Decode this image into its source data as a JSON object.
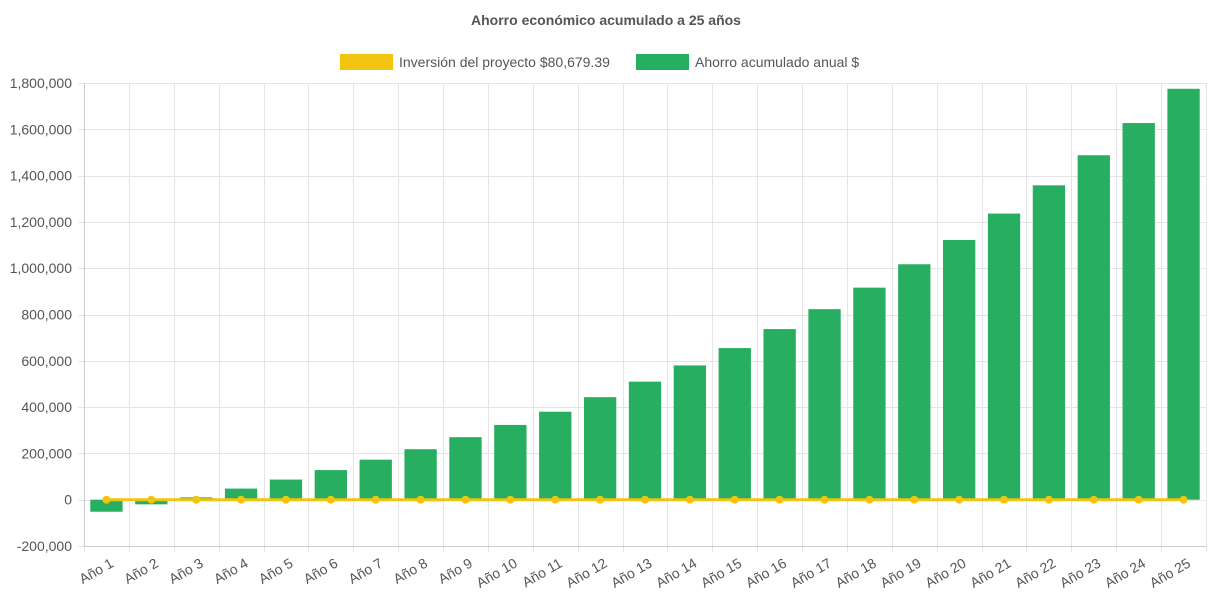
{
  "chart_data": {
    "type": "bar",
    "title": "Ahorro económico acumulado a 25 años",
    "categories": [
      "Año 1",
      "Año 2",
      "Año 3",
      "Año 4",
      "Año 5",
      "Año 6",
      "Año 7",
      "Año 8",
      "Año 9",
      "Año 10",
      "Año 11",
      "Año 12",
      "Año 13",
      "Año 14",
      "Año 15",
      "Año 16",
      "Año 17",
      "Año 18",
      "Año 19",
      "Año 20",
      "Año 21",
      "Año 22",
      "Año 23",
      "Año 24",
      "Año 25"
    ],
    "series": [
      {
        "name": "Inversión del proyecto $80,679.39",
        "type": "line",
        "color": "#f1c40f",
        "values": [
          0,
          0,
          0,
          0,
          0,
          0,
          0,
          0,
          0,
          0,
          0,
          0,
          0,
          0,
          0,
          0,
          0,
          0,
          0,
          0,
          0,
          0,
          0,
          0,
          0
        ]
      },
      {
        "name": "Ahorro acumulado anual $",
        "type": "bar",
        "color": "#27ae60",
        "values": [
          -52000,
          -20000,
          10000,
          48000,
          87000,
          128000,
          173000,
          218000,
          270000,
          323000,
          380000,
          443000,
          510000,
          580000,
          655000,
          737000,
          823000,
          916000,
          1017000,
          1122000,
          1236000,
          1358000,
          1488000,
          1627000,
          1775000
        ]
      }
    ],
    "xlabel": "",
    "ylabel": "",
    "ylim": [
      -200000,
      1800000
    ],
    "yticks": [
      -200000,
      0,
      200000,
      400000,
      600000,
      800000,
      1000000,
      1200000,
      1400000,
      1600000,
      1800000
    ],
    "ytick_labels": [
      "-200,000",
      "0",
      "200,000",
      "400,000",
      "600,000",
      "800,000",
      "1,000,000",
      "1,200,000",
      "1,400,000",
      "1,600,000",
      "1,800,000"
    ],
    "grid": true,
    "legend_position": "top"
  }
}
